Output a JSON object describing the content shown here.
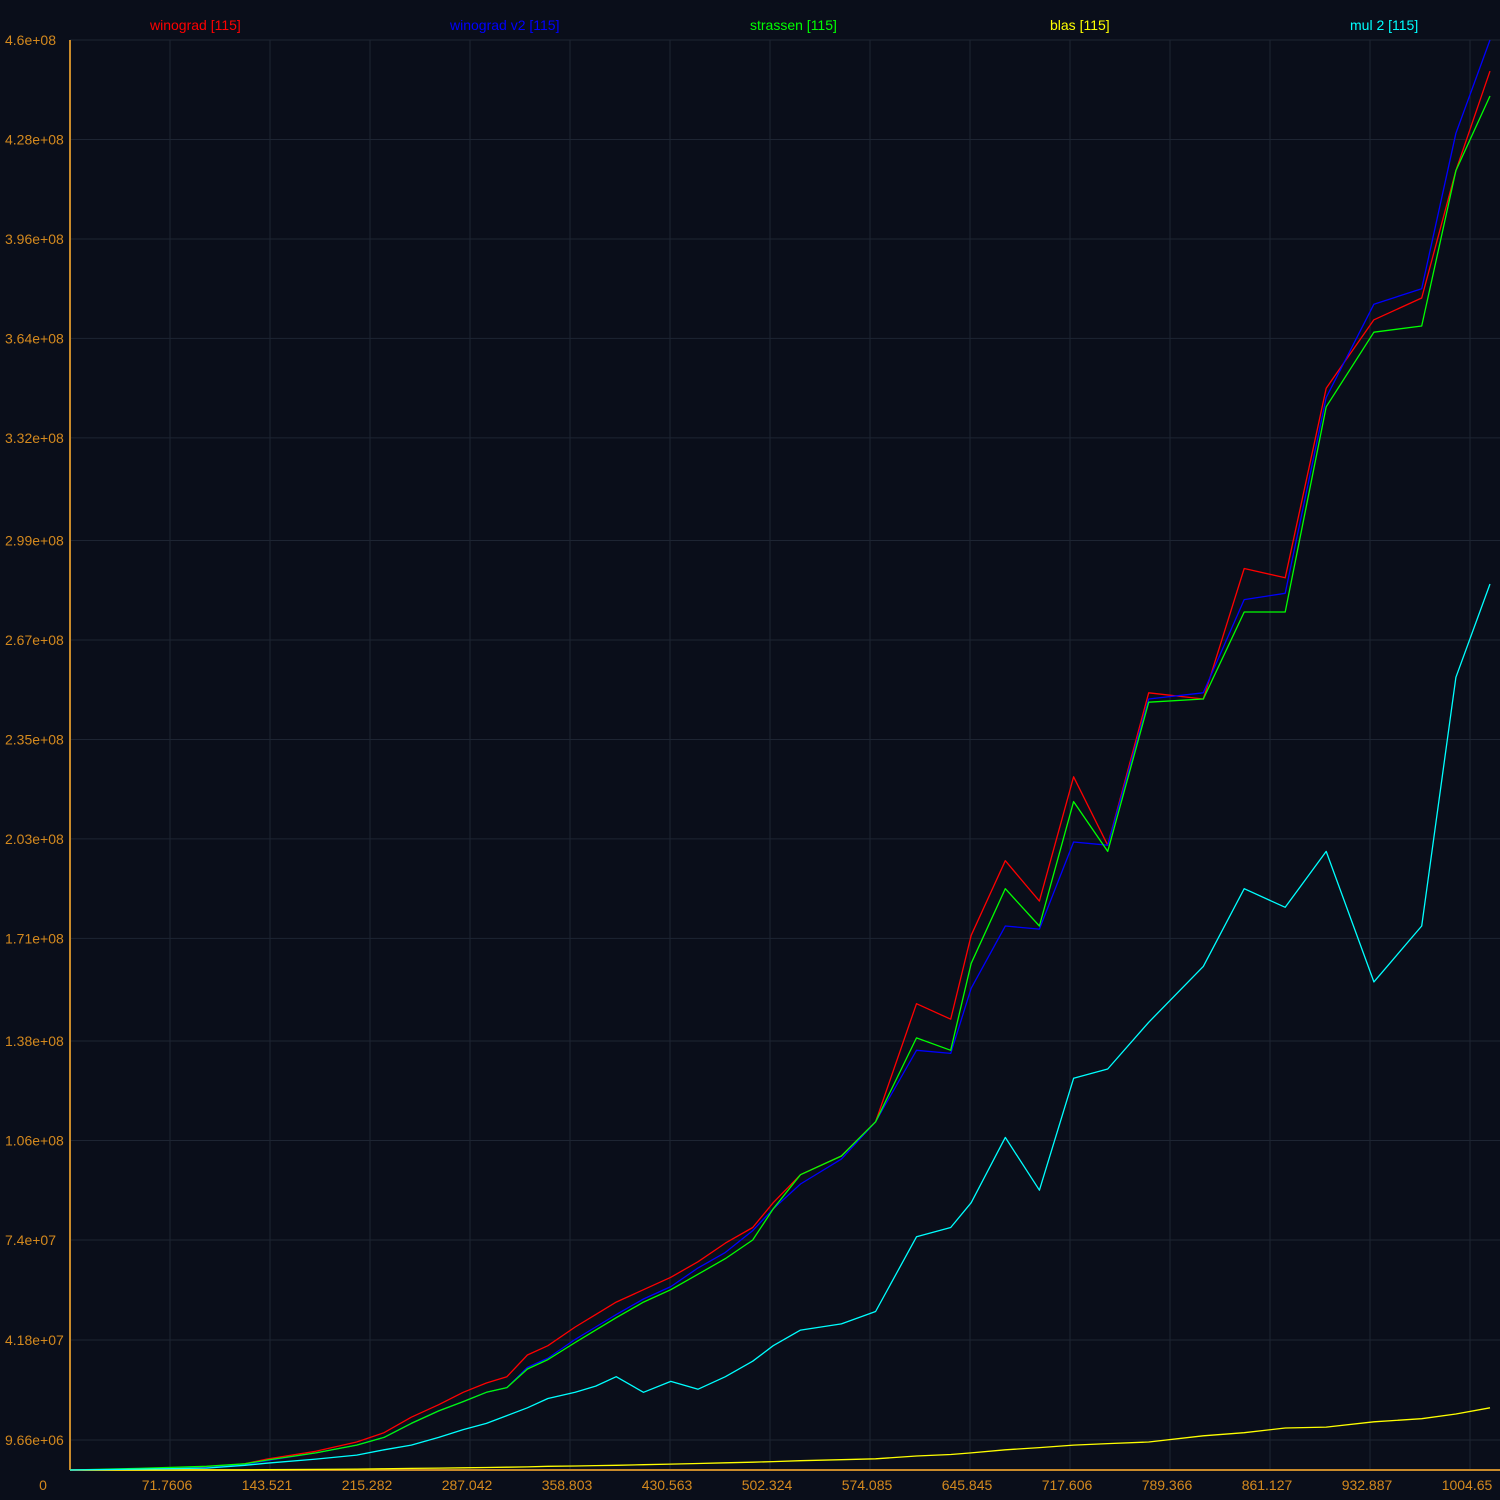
{
  "chart_data": {
    "type": "line",
    "title": "",
    "xlabel": "",
    "ylabel": "",
    "xlim": [
      0,
      1040
    ],
    "ylim": [
      0,
      460000000
    ],
    "grid": true,
    "legend_position": "top",
    "x_ticks": [
      "0",
      "71.7606",
      "143.521",
      "215.282",
      "287.042",
      "358.803",
      "430.563",
      "502.324",
      "574.085",
      "645.845",
      "717.606",
      "789.366",
      "861.127",
      "932.887",
      "1004.65"
    ],
    "x_tick_values": [
      0,
      71.7606,
      143.521,
      215.282,
      287.042,
      358.803,
      430.563,
      502.324,
      574.085,
      645.845,
      717.606,
      789.366,
      861.127,
      932.887,
      1004.65
    ],
    "y_ticks": [
      "9.66e+06",
      "4.18e+07",
      "7.4e+07",
      "1.06e+08",
      "1.38e+08",
      "1.71e+08",
      "2.03e+08",
      "2.35e+08",
      "2.67e+08",
      "2.99e+08",
      "3.32e+08",
      "3.64e+08",
      "3.96e+08",
      "4.28e+08",
      "4.6e+08"
    ],
    "y_tick_values": [
      9660000,
      41800000,
      74000000,
      106000000,
      138000000,
      171000000,
      203000000,
      235000000,
      267000000,
      299000000,
      332000000,
      364000000,
      396000000,
      428000000,
      460000000
    ],
    "x": [
      0,
      50,
      100,
      128,
      144,
      180,
      210,
      230,
      250,
      270,
      288,
      305,
      320,
      335,
      350,
      370,
      385,
      400,
      420,
      440,
      460,
      480,
      500,
      515,
      535,
      565,
      590,
      620,
      645,
      660,
      685,
      710,
      735,
      760,
      790,
      830,
      860,
      890,
      920,
      955,
      990,
      1015,
      1040
    ],
    "series": [
      {
        "name": "winograd [115]",
        "color": "#ff0000",
        "values": [
          0,
          200000,
          800000,
          2000000,
          3500000,
          6000000,
          9000000,
          12000000,
          17000000,
          21000000,
          25000000,
          28000000,
          30000000,
          37000000,
          40000000,
          46000000,
          50000000,
          54000000,
          58000000,
          62000000,
          67000000,
          73000000,
          78000000,
          86000000,
          95000000,
          101000000,
          112000000,
          150000000,
          145000000,
          172000000,
          196000000,
          183000000,
          223000000,
          201000000,
          250000000,
          248000000,
          290000000,
          287000000,
          348000000,
          370000000,
          377000000,
          418000000,
          450000000
        ]
      },
      {
        "name": "winograd v2 [115]",
        "color": "#0000ff",
        "values": [
          0,
          200000,
          700000,
          1800000,
          3000000,
          5500000,
          8000000,
          10500000,
          15000000,
          19000000,
          22000000,
          25000000,
          26500000,
          33000000,
          36000000,
          42000000,
          46000000,
          50000000,
          55000000,
          59000000,
          65000000,
          70000000,
          77000000,
          84000000,
          92000000,
          100000000,
          112000000,
          135000000,
          134000000,
          155000000,
          175000000,
          174000000,
          202000000,
          201000000,
          248000000,
          250000000,
          280000000,
          282000000,
          345000000,
          375000000,
          380000000,
          430000000,
          465000000
        ]
      },
      {
        "name": "strassen [115]",
        "color": "#00ff00",
        "values": [
          0,
          500000,
          1200000,
          2000000,
          3200000,
          5500000,
          8000000,
          10500000,
          15000000,
          19000000,
          22000000,
          25000000,
          26500000,
          32500000,
          35500000,
          41000000,
          45000000,
          49000000,
          54000000,
          58000000,
          63000000,
          68000000,
          74000000,
          84000000,
          95000000,
          101000000,
          112000000,
          139000000,
          135000000,
          163000000,
          187000000,
          175000000,
          215000000,
          199000000,
          247000000,
          248000000,
          276000000,
          276000000,
          342000000,
          366000000,
          368000000,
          418000000,
          442000000
        ]
      },
      {
        "name": "blas [115]",
        "color": "#ffff00",
        "values": [
          0,
          0,
          0,
          0,
          100000,
          200000,
          300000,
          400000,
          500000,
          600000,
          700000,
          800000,
          900000,
          1000000,
          1200000,
          1300000,
          1400000,
          1500000,
          1700000,
          1900000,
          2100000,
          2300000,
          2500000,
          2700000,
          3000000,
          3300000,
          3600000,
          4500000,
          5000000,
          5500000,
          6500000,
          7200000,
          8000000,
          8500000,
          9000000,
          11000000,
          12000000,
          13500000,
          13800000,
          15500000,
          16500000,
          18000000,
          20000000
        ]
      },
      {
        "name": "mul 2 [115]",
        "color": "#00ffff",
        "values": [
          0,
          300000,
          600000,
          1500000,
          2200000,
          3500000,
          4800000,
          6500000,
          8000000,
          10500000,
          13000000,
          15000000,
          17500000,
          20000000,
          23000000,
          25000000,
          27000000,
          30000000,
          25000000,
          28500000,
          26000000,
          30000000,
          35000000,
          40000000,
          45000000,
          47000000,
          51000000,
          75000000,
          78000000,
          86000000,
          107000000,
          90000000,
          126000000,
          129000000,
          144000000,
          162000000,
          187000000,
          181000000,
          199000000,
          157000000,
          175000000,
          255000000,
          285000000
        ]
      }
    ]
  }
}
